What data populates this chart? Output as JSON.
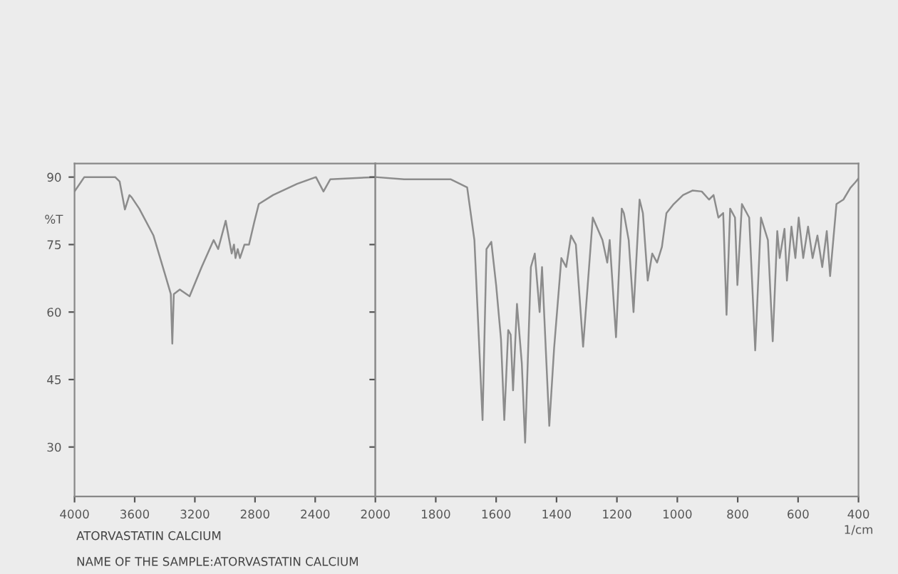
{
  "chart_data": [
    {
      "type": "line",
      "ylabel": "%T",
      "xlim": [
        4000,
        2000
      ],
      "xticks": [
        4000,
        3600,
        3200,
        2800,
        2400,
        2000
      ],
      "ylim": [
        19,
        93
      ],
      "yticks": [
        30,
        45,
        60,
        75,
        90
      ],
      "grid": false,
      "marker": "none",
      "line_style": "solid",
      "annotations": [
        "ATORVASTATIN CALCIUM",
        "NAME OF THE SAMPLE:ATORVASTATIN CALCIUM"
      ],
      "series": [
        {
          "color": "#8c8c8c",
          "x": [
            4000,
            3935,
            3890,
            3730,
            3700,
            3665,
            3635,
            3620,
            3570,
            3475,
            3395,
            3360,
            3350,
            3340,
            3300,
            3235,
            3155,
            3075,
            3045,
            2995,
            2955,
            2940,
            2930,
            2915,
            2900,
            2870,
            2840,
            2805,
            2775,
            2680,
            2520,
            2395,
            2345,
            2300,
            2000
          ],
          "values": [
            86.8,
            90,
            90,
            90,
            89,
            82.8,
            86,
            85.5,
            83,
            77,
            68,
            64,
            53,
            64,
            65,
            63.5,
            70,
            76,
            74,
            80.3,
            73,
            75,
            72,
            74,
            72,
            75,
            75,
            80,
            84,
            86,
            88.5,
            90,
            86.8,
            89.5,
            90
          ]
        }
      ]
    },
    {
      "type": "line",
      "xlabel": "1/cm",
      "tick_labels": "x",
      "xlim": [
        2000,
        400
      ],
      "xticks": [
        1800,
        1600,
        1400,
        1200,
        1000,
        800,
        600,
        400
      ],
      "ylim": [
        19,
        93
      ],
      "yticks": [
        30,
        45,
        60,
        75,
        90
      ],
      "grid": false,
      "marker": "none",
      "line_style": "solid",
      "series": [
        {
          "color": "#8c8c8c",
          "x": [
            2000,
            1905,
            1750,
            1696,
            1672,
            1645,
            1632,
            1616,
            1600,
            1584,
            1573,
            1560,
            1552,
            1544,
            1531,
            1515,
            1504,
            1485,
            1472,
            1456,
            1448,
            1424,
            1408,
            1384,
            1368,
            1352,
            1336,
            1312,
            1280,
            1248,
            1232,
            1224,
            1203,
            1184,
            1177,
            1161,
            1145,
            1125,
            1114,
            1098,
            1083,
            1067,
            1051,
            1036,
            1012,
            981,
            950,
            919,
            895,
            880,
            864,
            848,
            837,
            825,
            809,
            801,
            786,
            762,
            742,
            723,
            700,
            684,
            669,
            661,
            645,
            637,
            622,
            609,
            598,
            583,
            567,
            552,
            536,
            520,
            505,
            494,
            473,
            450,
            427,
            411,
            400
          ],
          "values": [
            90,
            89.5,
            89.5,
            87.7,
            76,
            36,
            74,
            75.6,
            66,
            54,
            36,
            56,
            55,
            42.6,
            61.8,
            48.6,
            31,
            70,
            73,
            60,
            70,
            34.7,
            52,
            72,
            70,
            77,
            75,
            52.3,
            81,
            76,
            71,
            76,
            54.4,
            83,
            82,
            76,
            60,
            85,
            82,
            67,
            73,
            71,
            74.5,
            82,
            84,
            86,
            87,
            86.8,
            85,
            86,
            81,
            82,
            59.4,
            83,
            81,
            66,
            84,
            81,
            51.5,
            81,
            76,
            53.5,
            78,
            72,
            78.5,
            67,
            79,
            72,
            81,
            72,
            79,
            72,
            77,
            70,
            78,
            68,
            84,
            85,
            87.6,
            88.8,
            89.7
          ]
        }
      ]
    }
  ]
}
